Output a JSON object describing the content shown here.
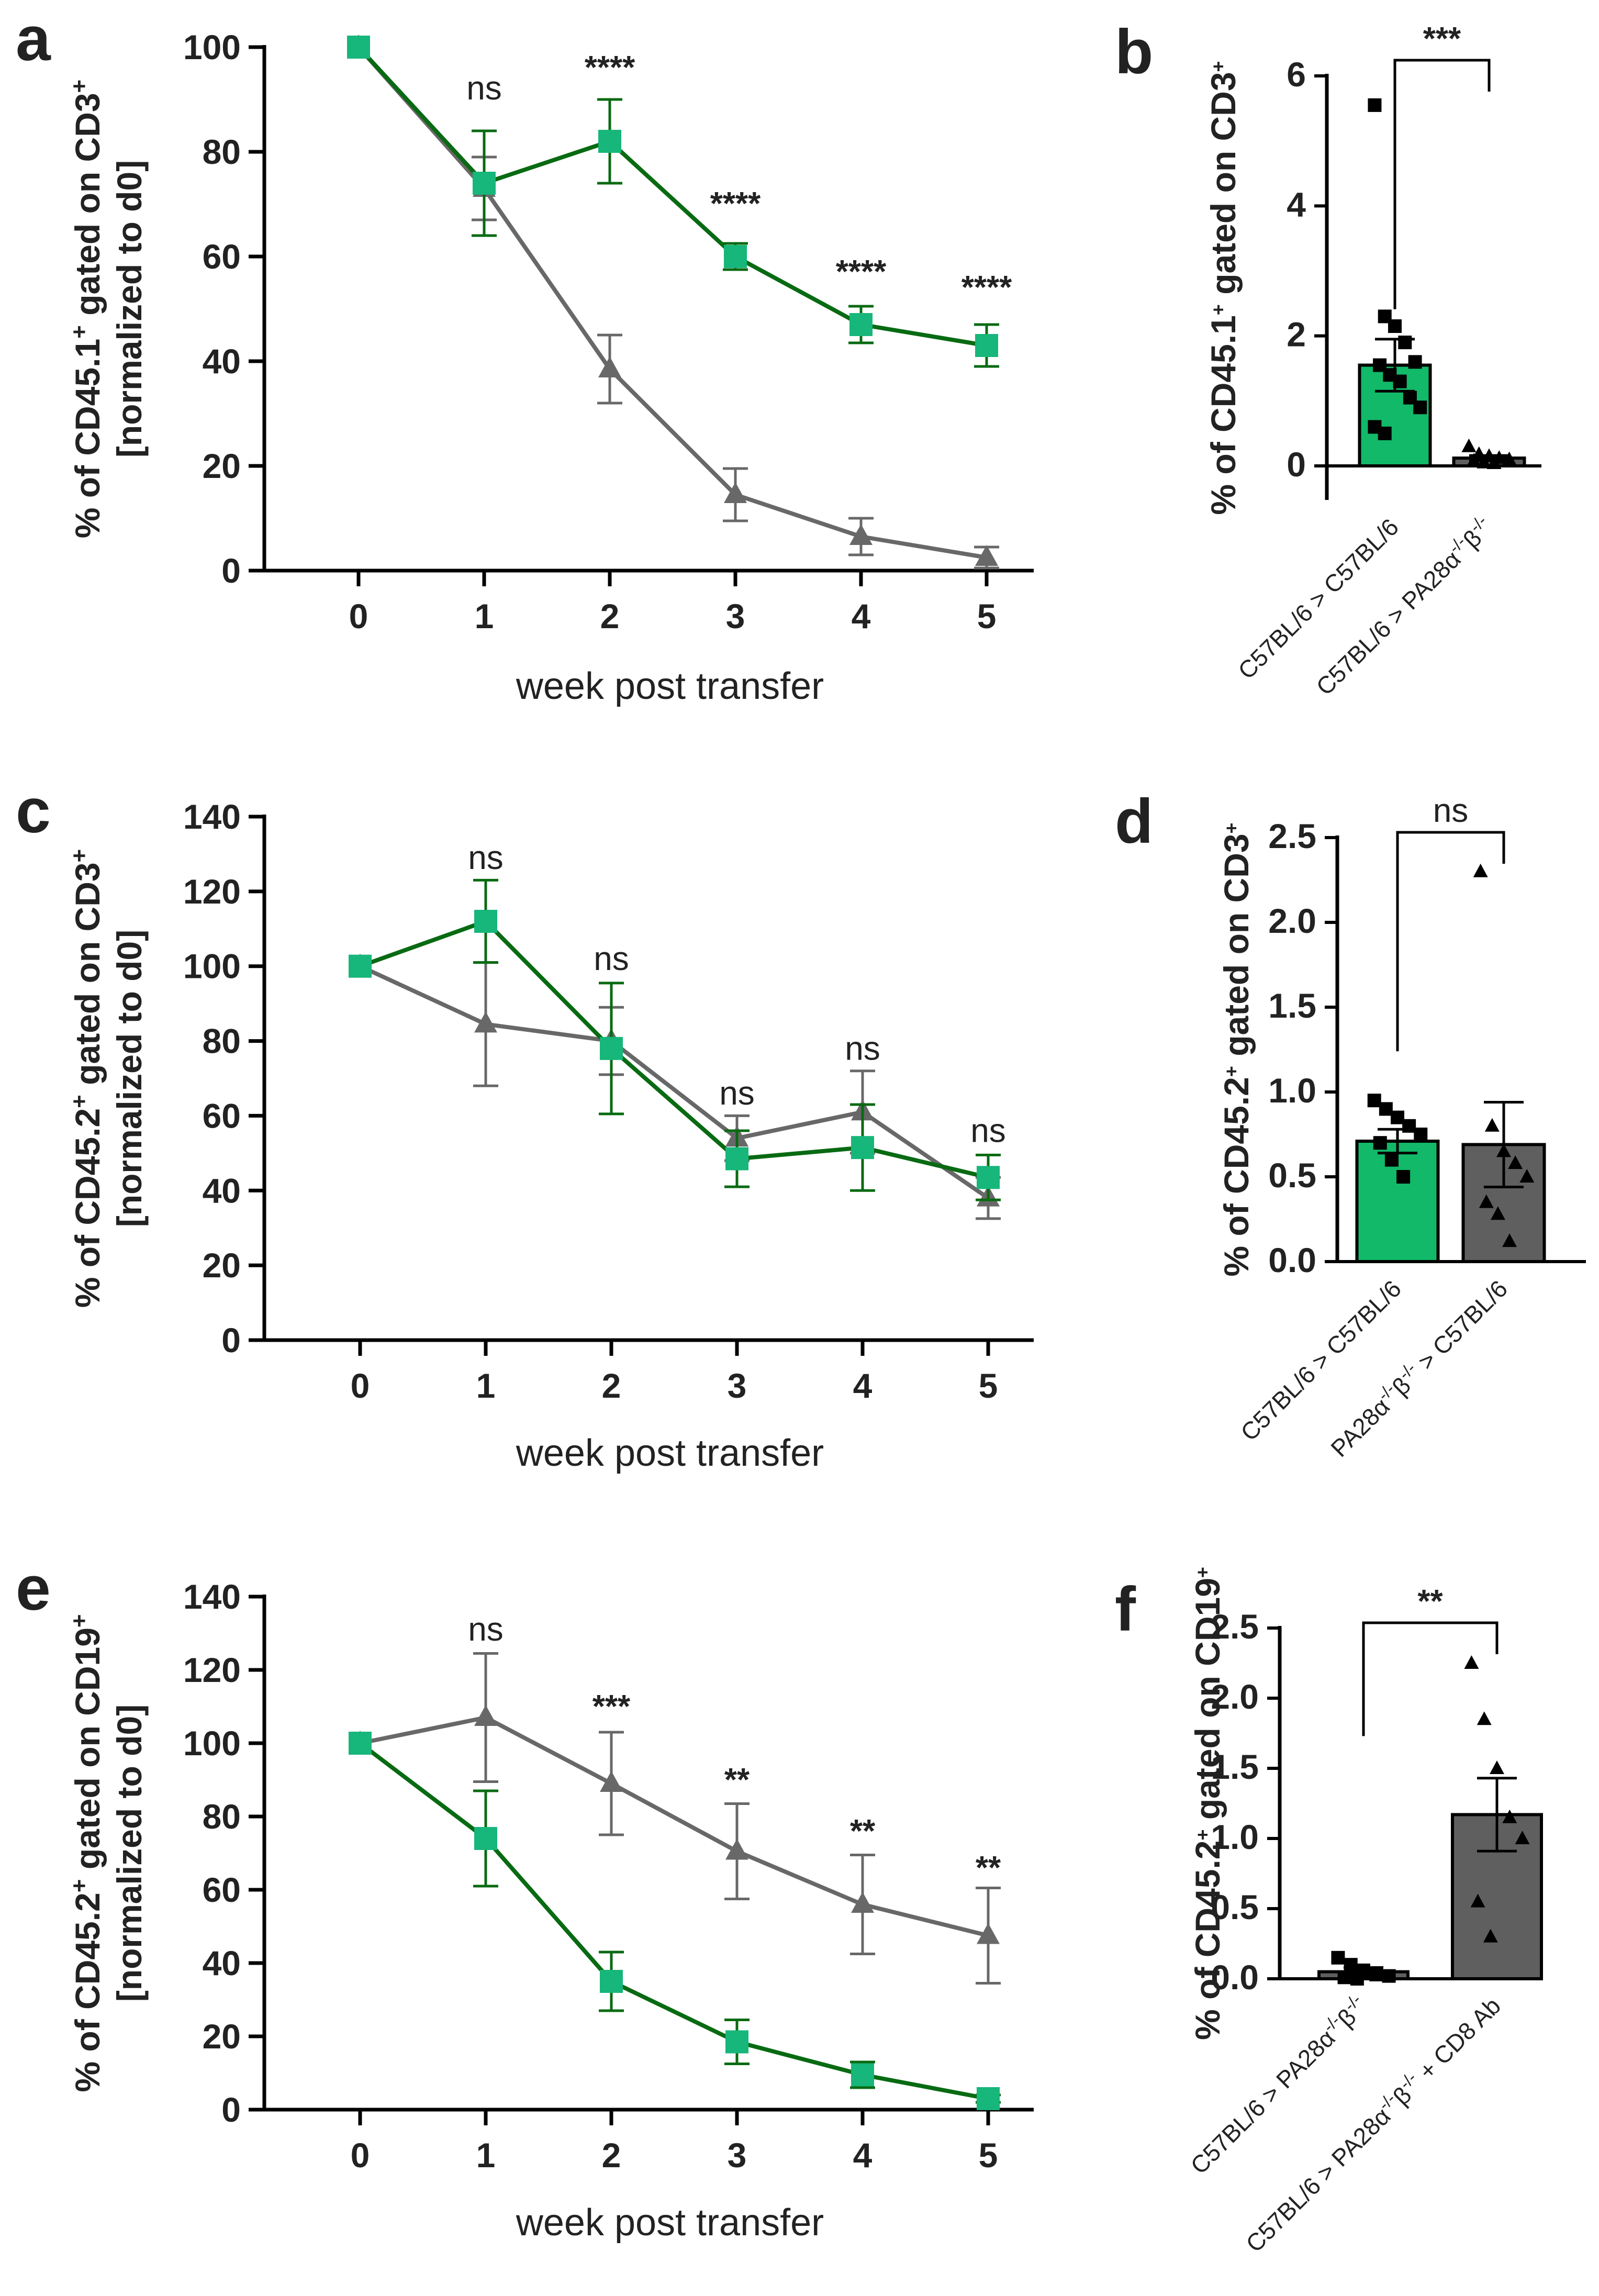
{
  "colors": {
    "green_line": "#086a12",
    "green_marker": "#17b67a",
    "gray": "#686868",
    "axis": "#000000",
    "bar_green": "#11b969",
    "bar_gray": "#5f5f5f"
  },
  "chart_data": [
    {
      "id": "a",
      "panel_label": "a",
      "type": "line",
      "ylabel_line1": "% of CD45.1",
      "ylabel_sup": "+",
      "ylabel_mid": " gated on CD3",
      "ylabel_sup2": "+",
      "ylabel_line2": "[normalized to d0]",
      "xlabel": "week post transfer",
      "x": [
        0,
        1,
        2,
        3,
        4,
        5
      ],
      "ylim": [
        0,
        100
      ],
      "yticks": [
        0,
        20,
        40,
        60,
        80,
        100
      ],
      "series": [
        {
          "name": "green",
          "marker": "square",
          "values": [
            100,
            74,
            82,
            60,
            47,
            43
          ],
          "errors": [
            0,
            10,
            8,
            2.5,
            3.5,
            4
          ]
        },
        {
          "name": "gray",
          "marker": "triangle",
          "values": [
            100,
            73,
            38.5,
            14.5,
            6.5,
            2.5
          ],
          "errors": [
            0,
            6,
            6.5,
            5,
            3.5,
            2
          ]
        }
      ],
      "annotations": [
        {
          "x": 1,
          "text": "ns",
          "y": 90,
          "style": "ann"
        },
        {
          "x": 2,
          "text": "****",
          "y": 94,
          "style": "annb"
        },
        {
          "x": 3,
          "text": "****",
          "y": 68,
          "style": "annb"
        },
        {
          "x": 4,
          "text": "****",
          "y": 55,
          "style": "annb"
        },
        {
          "x": 5,
          "text": "****",
          "y": 52,
          "style": "annb"
        }
      ]
    },
    {
      "id": "c",
      "panel_label": "c",
      "type": "line",
      "ylabel_line1": "% of CD45.2",
      "ylabel_sup": "+",
      "ylabel_mid": " gated on CD3",
      "ylabel_sup2": "+",
      "ylabel_line2": "[normalized to d0]",
      "xlabel": "week post transfer",
      "x": [
        0,
        1,
        2,
        3,
        4,
        5
      ],
      "ylim": [
        0,
        140
      ],
      "yticks": [
        0,
        20,
        40,
        60,
        80,
        100,
        120,
        140
      ],
      "series": [
        {
          "name": "green",
          "marker": "square",
          "values": [
            100,
            112,
            78,
            48.5,
            51.5,
            43.5
          ],
          "errors": [
            0,
            11,
            17.5,
            7.5,
            11.5,
            6
          ]
        },
        {
          "name": "gray",
          "marker": "triangle",
          "values": [
            100,
            84.5,
            80,
            54,
            61,
            38
          ],
          "errors": [
            0,
            16.5,
            9,
            6,
            11,
            5.5
          ]
        }
      ],
      "annotations": [
        {
          "x": 1,
          "text": "ns",
          "y": 126,
          "style": "ann"
        },
        {
          "x": 2,
          "text": "ns",
          "y": 99,
          "style": "ann"
        },
        {
          "x": 3,
          "text": "ns",
          "y": 63,
          "style": "ann"
        },
        {
          "x": 4,
          "text": "ns",
          "y": 75,
          "style": "ann"
        },
        {
          "x": 5,
          "text": "ns",
          "y": 53,
          "style": "ann"
        }
      ]
    },
    {
      "id": "e",
      "panel_label": "e",
      "type": "line",
      "ylabel_line1": "% of CD45.2",
      "ylabel_sup": "+",
      "ylabel_mid": " gated on CD19",
      "ylabel_sup2": "+",
      "ylabel_line2": "[normalized to d0]",
      "xlabel": "week post transfer",
      "x": [
        0,
        1,
        2,
        3,
        4,
        5
      ],
      "ylim": [
        0,
        140
      ],
      "yticks": [
        0,
        20,
        40,
        60,
        80,
        100,
        120,
        140
      ],
      "series": [
        {
          "name": "green",
          "marker": "square",
          "values": [
            100,
            74,
            35,
            18.5,
            9.5,
            3
          ],
          "errors": [
            0,
            13,
            8,
            6,
            3.5,
            1
          ]
        },
        {
          "name": "gray",
          "marker": "triangle",
          "values": [
            100,
            107,
            89,
            70.5,
            56,
            47.5
          ],
          "errors": [
            0,
            17.5,
            14,
            13,
            13.5,
            13
          ]
        }
      ],
      "annotations": [
        {
          "x": 1,
          "text": "ns",
          "y": 128,
          "style": "ann"
        },
        {
          "x": 2,
          "text": "***",
          "y": 107,
          "style": "annb"
        },
        {
          "x": 3,
          "text": "**",
          "y": 87,
          "style": "annb"
        },
        {
          "x": 4,
          "text": "**",
          "y": 73,
          "style": "annb"
        },
        {
          "x": 5,
          "text": "**",
          "y": 63,
          "style": "annb"
        }
      ]
    },
    {
      "id": "b",
      "panel_label": "b",
      "type": "bar",
      "ylabel": "% of CD45.1",
      "ylabel_sup": "+",
      "ylabel_mid": " gated on CD3",
      "ylabel_sup2": "+",
      "ylim": [
        -0.5,
        6
      ],
      "yticks": [
        0,
        2,
        4,
        6
      ],
      "ytick_labels": [
        "0",
        "2",
        "4",
        "6"
      ],
      "categories": [
        "C57BL/6 > C57BL/6",
        "C57BL/6 > PA28α-/-β-/-"
      ],
      "values": [
        1.55,
        0.12
      ],
      "errors": [
        0.4,
        0.04
      ],
      "points": [
        [
          5.55,
          2.3,
          2.15,
          1.9,
          1.6,
          1.55,
          1.4,
          1.3,
          1.05,
          0.9,
          0.6,
          0.5
        ],
        [
          0.3,
          0.18,
          0.15,
          0.12,
          0.1,
          0.08,
          0.05,
          0.04
        ]
      ],
      "significance": "***"
    },
    {
      "id": "d",
      "panel_label": "d",
      "type": "bar",
      "ylabel": "% of CD45.2",
      "ylabel_sup": "+",
      "ylabel_mid": " gated on CD3",
      "ylabel_sup2": "+",
      "ylim": [
        0,
        2.5
      ],
      "yticks": [
        0,
        0.5,
        1.0,
        1.5,
        2.0,
        2.5
      ],
      "ytick_labels": [
        "0.0",
        "0.5",
        "1.0",
        "1.5",
        "2.0",
        "2.5"
      ],
      "categories": [
        "C57BL/6 > C57BL/6",
        "PA28α-/-β-/- > C57BL/6"
      ],
      "values": [
        0.71,
        0.69
      ],
      "errors": [
        0.07,
        0.25
      ],
      "points": [
        [
          0.95,
          0.9,
          0.85,
          0.8,
          0.75,
          0.7,
          0.6,
          0.5
        ],
        [
          2.3,
          0.8,
          0.65,
          0.58,
          0.5,
          0.35,
          0.28,
          0.12
        ]
      ],
      "significance": "ns"
    },
    {
      "id": "f",
      "panel_label": "f",
      "type": "bar",
      "ylabel": "% of CD45.2",
      "ylabel_sup": "+",
      "ylabel_mid": " gated on CD19",
      "ylabel_sup2": "+",
      "ylim": [
        0,
        2.5
      ],
      "yticks": [
        0,
        0.5,
        1.0,
        1.5,
        2.0,
        2.5
      ],
      "ytick_labels": [
        "0.0",
        "0.5",
        "1.0",
        "1.5",
        "2.0",
        "2.5"
      ],
      "categories": [
        "C57BL/6 > PA28α-/-β-/-",
        "C57BL/6 > PA28α-/-β-/- + CD8 Ab"
      ],
      "values": [
        0.05,
        1.17
      ],
      "errors": [
        0.03,
        0.26
      ],
      "points": [
        [
          0.15,
          0.1,
          0.06,
          0.03,
          0.02,
          0.01,
          0.0
        ],
        [
          2.25,
          1.85,
          1.5,
          1.15,
          1.0,
          0.55,
          0.3
        ]
      ],
      "significance": "**"
    }
  ]
}
